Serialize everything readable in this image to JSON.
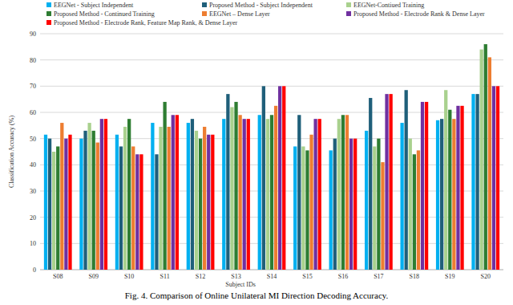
{
  "chart_data": {
    "type": "bar",
    "caption": "Fig. 4. Comparison of Online Unilateral MI Direction Decoding Accuracy.",
    "x_label": "Subject IDs",
    "y_label": "Classification Accuracy (%)",
    "categories": [
      "S08",
      "S09",
      "S10",
      "S11",
      "S12",
      "S13",
      "S14",
      "S15",
      "S16",
      "S17",
      "S18",
      "S19",
      "S20"
    ],
    "series": [
      {
        "name": "EEGNet - Subject Independent",
        "color": "#00b0f0",
        "values": [
          51.5,
          50,
          51.5,
          56,
          56,
          57.5,
          59,
          47,
          45.5,
          53,
          56,
          57,
          67
        ]
      },
      {
        "name": "Proposed Method - Subject Independent",
        "color": "#1f5f7a",
        "values": [
          50,
          53,
          47,
          44,
          57.5,
          67,
          70,
          59,
          50,
          65.5,
          68.5,
          57.5,
          67
        ]
      },
      {
        "name": "EEGNet-Contiued Training",
        "color": "#a9d18e",
        "values": [
          45,
          56,
          54.5,
          54.5,
          53,
          62,
          57.5,
          47,
          57.5,
          47,
          50,
          68.5,
          84
        ]
      },
      {
        "name": "Proposed Method - Continued Training",
        "color": "#2e7d32",
        "values": [
          47,
          53,
          57.5,
          64,
          50,
          64,
          59,
          45.5,
          59,
          50,
          44,
          61,
          86
        ]
      },
      {
        "name": "EEGNet – Dense Layer",
        "color": "#ed7d31",
        "values": [
          56,
          48.5,
          47,
          54.5,
          54.5,
          59,
          62.5,
          51.5,
          59,
          41,
          45.5,
          57.5,
          81
        ]
      },
      {
        "name": "Proposed Method - Electrode Rank & Dense Layer",
        "color": "#7030a0",
        "values": [
          50,
          57.5,
          44,
          59,
          51.5,
          57.5,
          70,
          57.5,
          50,
          67,
          64,
          62.5,
          70
        ]
      },
      {
        "name": "Proposed Method - Electrode Rank, Feature Map Rank, & Dense Layer",
        "color": "#ff0000",
        "values": [
          51.5,
          57.5,
          44,
          59,
          51.5,
          57.5,
          70,
          57.5,
          50,
          67,
          64,
          62.5,
          70
        ]
      }
    ],
    "ylim": [
      0,
      90
    ],
    "yticks": [
      0,
      10,
      20,
      30,
      40,
      50,
      60,
      70,
      80,
      90
    ],
    "grid": true,
    "legend": "top"
  }
}
